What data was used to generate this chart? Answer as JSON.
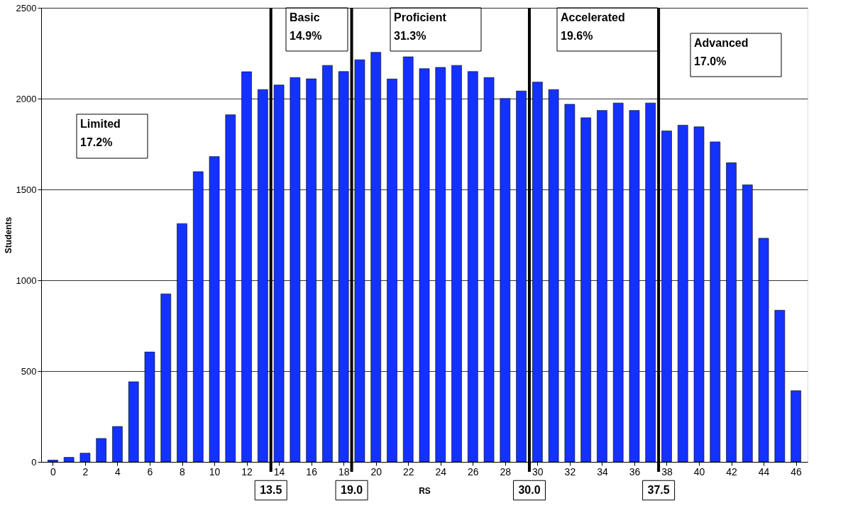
{
  "chart_data": {
    "type": "bar",
    "xlabel": "RS",
    "ylabel": "Students",
    "x": [
      0,
      1,
      2,
      3,
      4,
      5,
      6,
      7,
      8,
      9,
      10,
      11,
      12,
      13,
      14,
      15,
      16,
      17,
      18,
      19,
      20,
      21,
      22,
      23,
      24,
      25,
      26,
      27,
      28,
      29,
      30,
      31,
      32,
      33,
      34,
      35,
      36,
      37,
      38,
      39,
      40,
      41,
      42,
      43,
      44,
      45,
      46
    ],
    "values": [
      10,
      25,
      48,
      129,
      195,
      441,
      605,
      925,
      1312,
      1598,
      1681,
      1911,
      2148,
      2050,
      2075,
      2116,
      2109,
      2183,
      2149,
      2214,
      2255,
      2108,
      2230,
      2165,
      2172,
      2183,
      2149,
      2116,
      2001,
      2042,
      2091,
      2050,
      1969,
      1895,
      1935,
      1976,
      1935,
      1976,
      1822,
      1854,
      1845,
      1762,
      1647,
      1525,
      1231,
      835,
      392
    ],
    "color": "#1432ff",
    "xlim": [
      -0.5,
      46.5
    ],
    "xticks": [
      0,
      2,
      4,
      6,
      8,
      10,
      12,
      14,
      16,
      18,
      20,
      22,
      24,
      26,
      28,
      30,
      32,
      34,
      36,
      38,
      40,
      42,
      44,
      46
    ],
    "ylim": [
      0,
      2500
    ],
    "yticks": [
      0,
      500,
      1000,
      1500,
      2000,
      2500
    ],
    "grid": "y",
    "ref_lines": [
      {
        "axis": "x",
        "value": 13.5,
        "color": "#000000"
      },
      {
        "axis": "x",
        "value": 18.5,
        "color": "#000000"
      },
      {
        "axis": "x",
        "value": 29.5,
        "color": "#000000"
      },
      {
        "axis": "x",
        "value": 37.5,
        "color": "#000000"
      }
    ],
    "annotations": [
      "Limited\n17.2%",
      "Basic\n14.9%",
      "Proficient\n31.3%",
      "Accelerated\n19.6%",
      "Advanced\n17.0%",
      {
        "text": "13.5",
        "x": 13.5,
        "y": 0
      },
      {
        "text": "19.0",
        "x": 18.5,
        "y": 0
      },
      {
        "text": "30.0",
        "x": 29.5,
        "y": 0
      },
      {
        "text": "37.5",
        "x": 37.5,
        "y": 0
      }
    ]
  }
}
